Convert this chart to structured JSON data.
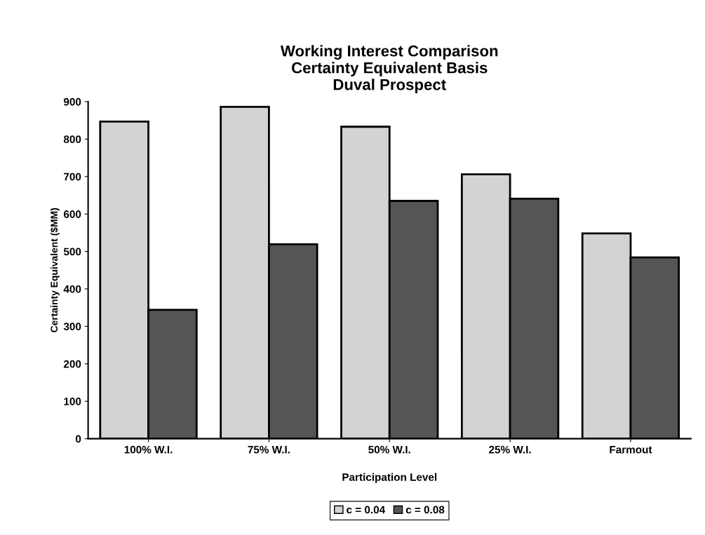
{
  "chart_data": {
    "type": "bar",
    "title": "Working Interest Comparison\nCertainty Equivalent Basis\nDuval Prospect",
    "xlabel": "Participation Level",
    "ylabel": "Certainty Equivalent ($MM)",
    "categories": [
      "100% W.I.",
      "75% W.I.",
      "50% W.I.",
      "25% W.I.",
      "Farmout"
    ],
    "series": [
      {
        "name": "c = 0.04",
        "color": "#d3d3d3",
        "values": [
          847,
          886,
          833,
          706,
          548
        ]
      },
      {
        "name": "c = 0.08",
        "color": "#555555",
        "values": [
          344,
          519,
          635,
          641,
          484
        ]
      }
    ],
    "ylim": [
      0,
      900
    ],
    "yticks": [
      0,
      100,
      200,
      300,
      400,
      500,
      600,
      700,
      800,
      900
    ],
    "grid": false,
    "legend": "bottom"
  }
}
